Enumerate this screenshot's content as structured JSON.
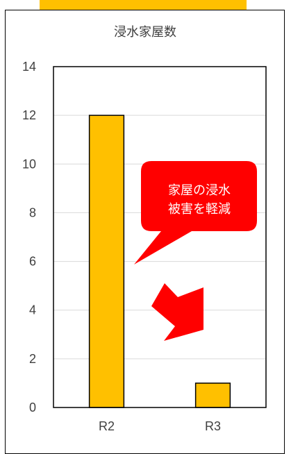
{
  "chart_data": {
    "type": "bar",
    "title": "浸水家屋数",
    "categories": [
      "R2",
      "R3"
    ],
    "values": [
      12,
      1
    ],
    "ylim": [
      0,
      14
    ],
    "yticks": [
      0,
      2,
      4,
      6,
      8,
      10,
      12,
      14
    ],
    "grid": true,
    "annotations": [
      {
        "text_lines": [
          "家屋の浸水",
          "被害を軽減"
        ]
      }
    ],
    "colors": {
      "bar": "#ffc000",
      "callout": "#ff0000",
      "grid": "#d9d9d9",
      "banner": "#ffc000"
    }
  }
}
